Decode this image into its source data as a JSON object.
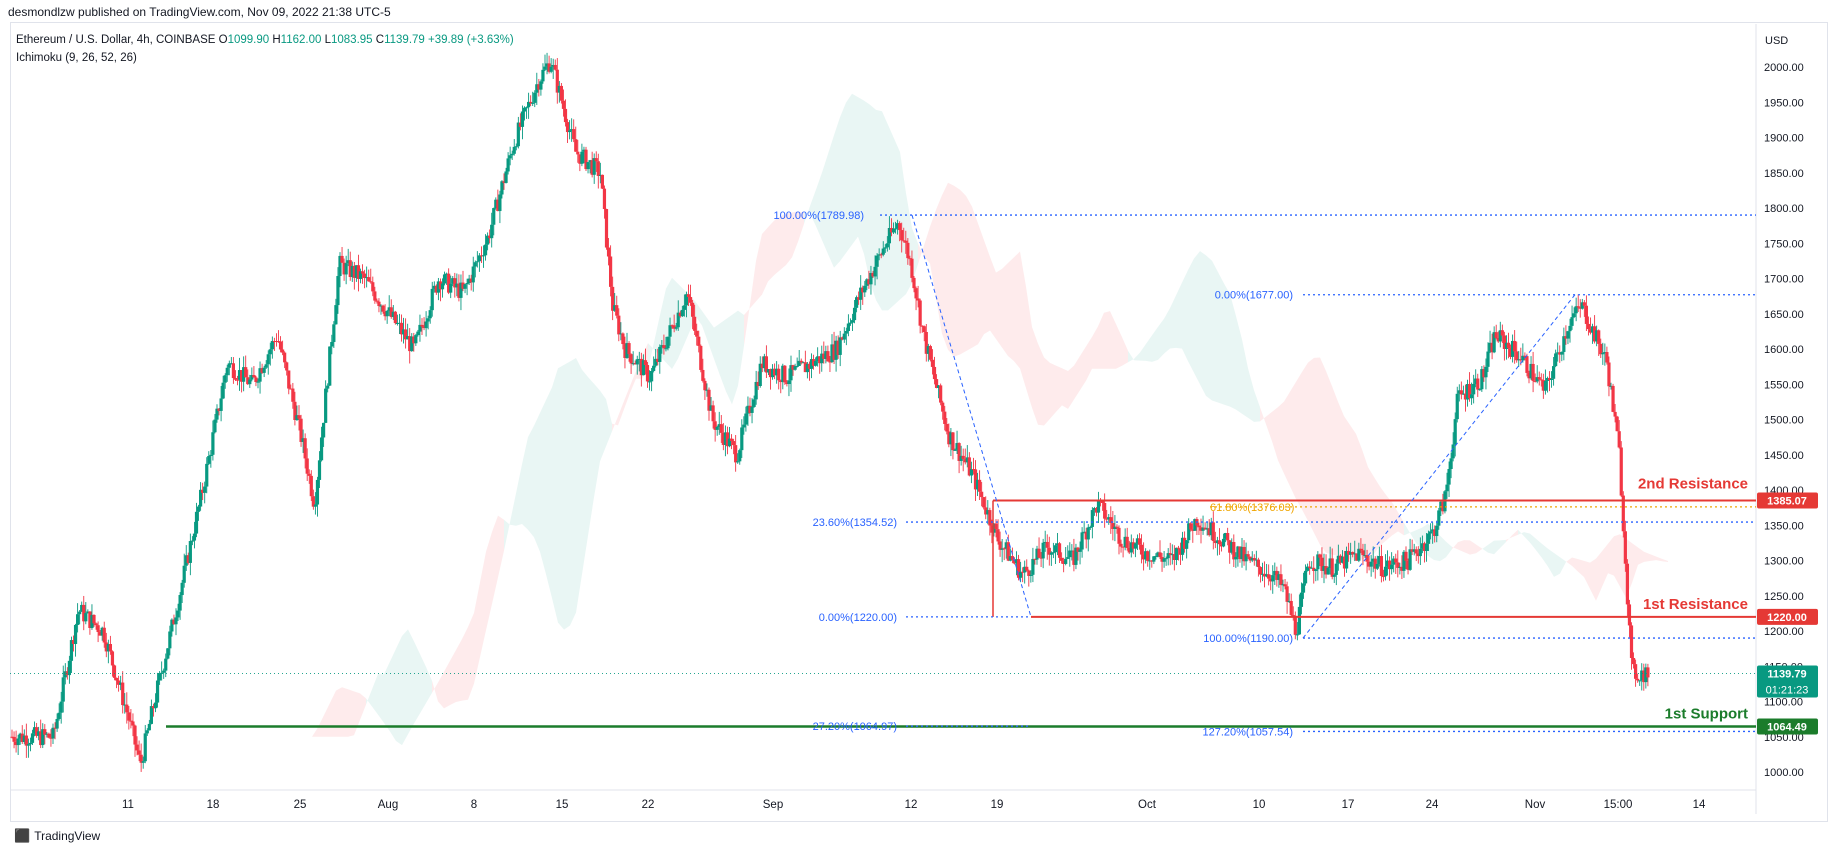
{
  "header": {
    "published": "desmondlzw published on TradingView.com, Nov 09, 2022 21:38 UTC-5"
  },
  "legend": {
    "symbol": "Ethereum / U.S. Dollar, 4h, COINBASE",
    "o_label": "O",
    "o": "1099.90",
    "h_label": "H",
    "h": "1162.00",
    "l_label": "L",
    "l": "1083.95",
    "c_label": "C",
    "c": "1139.79",
    "change": "+39.89 (+3.63%)",
    "indicator": "Ichimoku (9, 26, 52, 26)"
  },
  "footer": {
    "brand": "TradingView"
  },
  "colors": {
    "up": "#089981",
    "down": "#f23645",
    "fib": "#2962ff",
    "support": "#1b7c2b",
    "resistance": "#e53935",
    "fib_gold": "#f0a500"
  },
  "chart_data": {
    "type": "candlestick",
    "title": "",
    "ylabel": "USD",
    "ylim": [
      960,
      2060
    ],
    "y_ticks": [
      "2000.00",
      "1950.00",
      "1900.00",
      "1850.00",
      "1800.00",
      "1750.00",
      "1700.00",
      "1650.00",
      "1600.00",
      "1550.00",
      "1500.00",
      "1450.00",
      "1400.00",
      "1350.00",
      "1300.00",
      "1250.00",
      "1200.00",
      "1150.00",
      "1100.00",
      "1050.00",
      "1000.00"
    ],
    "x_ticks": [
      {
        "label": "11",
        "i": 0
      },
      {
        "label": "18",
        "i": 1
      },
      {
        "label": "25",
        "i": 2
      },
      {
        "label": "Aug",
        "i": 3
      },
      {
        "label": "8",
        "i": 4
      },
      {
        "label": "15",
        "i": 5
      },
      {
        "label": "22",
        "i": 6
      },
      {
        "label": "Sep",
        "i": 7
      },
      {
        "label": "12",
        "i": 8
      },
      {
        "label": "19",
        "i": 9
      },
      {
        "label": "Oct",
        "i": 10
      },
      {
        "label": "10",
        "i": 11
      },
      {
        "label": "17",
        "i": 12
      },
      {
        "label": "24",
        "i": 13
      },
      {
        "label": "Nov",
        "i": 14
      },
      {
        "label": "15:00",
        "i": 15
      },
      {
        "label": "14",
        "i": 16
      }
    ],
    "price_path": [
      [
        "Jul 05",
        1050
      ],
      [
        "Jul 07",
        1230
      ],
      [
        "Jul 09",
        1200
      ],
      [
        "Jul 11",
        1080
      ],
      [
        "Jul 12",
        1010
      ],
      [
        "Jul 13",
        1090
      ],
      [
        "Jul 15",
        1240
      ],
      [
        "Jul 17",
        1400
      ],
      [
        "Jul 19",
        1580
      ],
      [
        "Jul 21",
        1550
      ],
      [
        "Jul 23",
        1620
      ],
      [
        "Jul 25",
        1470
      ],
      [
        "Jul 26",
        1380
      ],
      [
        "Jul 28",
        1720
      ],
      [
        "Jul 30",
        1700
      ],
      [
        "Aug 01",
        1650
      ],
      [
        "Aug 03",
        1600
      ],
      [
        "Aug 05",
        1700
      ],
      [
        "Aug 07",
        1680
      ],
      [
        "Aug 09",
        1760
      ],
      [
        "Aug 11",
        1890
      ],
      [
        "Aug 13",
        1980
      ],
      [
        "Aug 14",
        2010
      ],
      [
        "Aug 16",
        1880
      ],
      [
        "Aug 18",
        1850
      ],
      [
        "Aug 19",
        1660
      ],
      [
        "Aug 20",
        1600
      ],
      [
        "Aug 22",
        1560
      ],
      [
        "Aug 25",
        1680
      ],
      [
        "Aug 27",
        1500
      ],
      [
        "Aug 29",
        1450
      ],
      [
        "Aug 31",
        1580
      ],
      [
        "Sep 02",
        1560
      ],
      [
        "Sep 04",
        1580
      ],
      [
        "Sep 06",
        1600
      ],
      [
        "Sep 08",
        1680
      ],
      [
        "Sep 10",
        1750
      ],
      [
        "Sep 11",
        1780
      ],
      [
        "Sep 12",
        1720
      ],
      [
        "Sep 13",
        1620
      ],
      [
        "Sep 15",
        1480
      ],
      [
        "Sep 17",
        1420
      ],
      [
        "Sep 19",
        1330
      ],
      [
        "Sep 21",
        1280
      ],
      [
        "Sep 23",
        1320
      ],
      [
        "Sep 25",
        1300
      ],
      [
        "Sep 27",
        1380
      ],
      [
        "Sep 29",
        1330
      ],
      [
        "Oct 01",
        1310
      ],
      [
        "Oct 03",
        1300
      ],
      [
        "Oct 05",
        1360
      ],
      [
        "Oct 07",
        1330
      ],
      [
        "Oct 09",
        1300
      ],
      [
        "Oct 11",
        1280
      ],
      [
        "Oct 12",
        1260
      ],
      [
        "Oct 13",
        1200
      ],
      [
        "Oct 14",
        1300
      ],
      [
        "Oct 16",
        1290
      ],
      [
        "Oct 18",
        1310
      ],
      [
        "Oct 20",
        1290
      ],
      [
        "Oct 22",
        1300
      ],
      [
        "Oct 24",
        1340
      ],
      [
        "Oct 25",
        1390
      ],
      [
        "Oct 26",
        1530
      ],
      [
        "Oct 28",
        1560
      ],
      [
        "Oct 29",
        1620
      ],
      [
        "Oct 31",
        1590
      ],
      [
        "Nov 02",
        1540
      ],
      [
        "Nov 04",
        1640
      ],
      [
        "Nov 05",
        1660
      ],
      [
        "Nov 06",
        1620
      ],
      [
        "Nov 07",
        1580
      ],
      [
        "Nov 08",
        1450
      ],
      [
        "Nov 09",
        1139.79
      ]
    ],
    "levels": [
      {
        "name": "2nd Resistance",
        "value": 1385.07,
        "label": "1385.07"
      },
      {
        "name": "1st Resistance",
        "value": 1220.0,
        "label": "1220.00"
      },
      {
        "name": "1st Support",
        "value": 1064.49,
        "label": "1064.49"
      }
    ],
    "current_price": {
      "value": 1139.79,
      "label": "1139.79",
      "countdown": "01:21:23"
    },
    "fib_labels": [
      {
        "text": "100.00%(1789.98)",
        "value": 1789.98
      },
      {
        "text": "0.00%(1677.00)",
        "value": 1677.0
      },
      {
        "text": "23.60%(1354.52)",
        "value": 1354.52
      },
      {
        "text": "61.80%(1376.03)",
        "value": 1376.03
      },
      {
        "text": "0.00%(1220.00)",
        "value": 1220.0
      },
      {
        "text": "100.00%(1190.00)",
        "value": 1190.0
      },
      {
        "text": "27.20%(1064.97)",
        "value": 1064.97
      },
      {
        "text": "127.20%(1057.54)",
        "value": 1057.54
      }
    ],
    "level_texts": {
      "r2": "2nd Resistance",
      "r1": "1st Resistance",
      "s1": "1st Support"
    }
  }
}
